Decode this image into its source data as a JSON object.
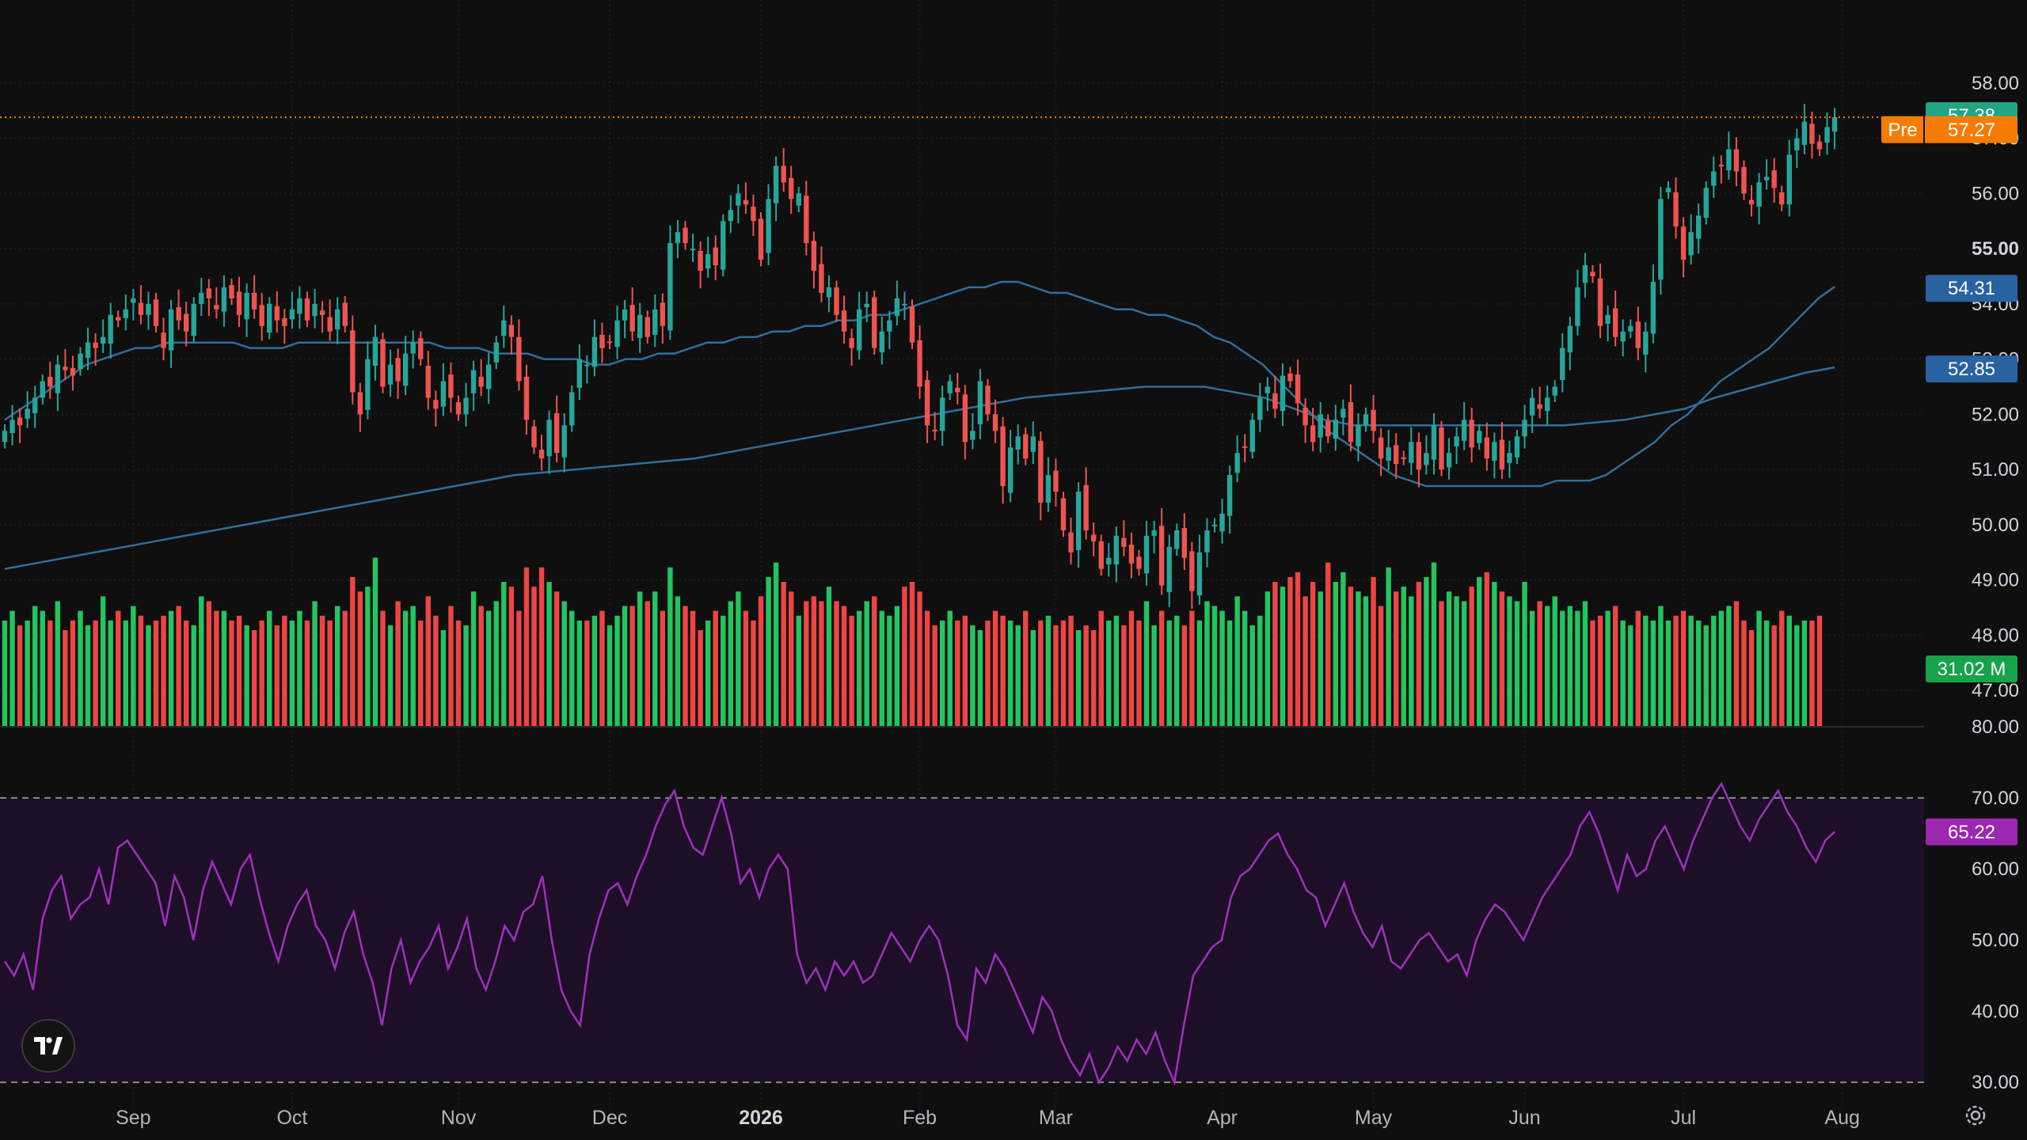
{
  "chart_data": {
    "type": "candlestick",
    "price_axis": {
      "ylim": [
        46.6,
        58.6
      ],
      "ticks": [
        "58.00",
        "57.00",
        "56.00",
        "55.00",
        "54.00",
        "53.00",
        "52.00",
        "51.00",
        "50.00",
        "49.00",
        "48.00",
        "47.00"
      ],
      "bold_ticks": [
        "55.00"
      ]
    },
    "rsi_axis": {
      "ylim": [
        25.0,
        80.0
      ],
      "ticks": [
        "80.00",
        "70.00",
        "60.00",
        "50.00",
        "40.00",
        "30.00"
      ],
      "band": [
        30,
        70
      ]
    },
    "x_labels": [
      {
        "label": "Sep",
        "i": 17,
        "bold": false
      },
      {
        "label": "Oct",
        "i": 38,
        "bold": false
      },
      {
        "label": "Nov",
        "i": 60,
        "bold": false
      },
      {
        "label": "Dec",
        "i": 80,
        "bold": false
      },
      {
        "label": "2026",
        "i": 100,
        "bold": true
      },
      {
        "label": "Feb",
        "i": 121,
        "bold": false
      },
      {
        "label": "Mar",
        "i": 139,
        "bold": false
      },
      {
        "label": "Apr",
        "i": 161,
        "bold": false
      },
      {
        "label": "May",
        "i": 181,
        "bold": false
      },
      {
        "label": "Jun",
        "i": 201,
        "bold": false
      },
      {
        "label": "Jul",
        "i": 222,
        "bold": false
      },
      {
        "label": "Aug",
        "i": 243,
        "bold": false
      }
    ],
    "closes": [
      51.7,
      51.9,
      51.8,
      52.1,
      52.3,
      52.6,
      52.5,
      52.9,
      52.8,
      52.7,
      53.1,
      53.3,
      53.2,
      53.4,
      53.8,
      53.7,
      53.9,
      54.1,
      53.8,
      54.0,
      53.6,
      53.2,
      53.9,
      53.7,
      53.5,
      54.0,
      54.2,
      54.1,
      53.9,
      54.3,
      54.1,
      53.8,
      54.2,
      53.9,
      53.6,
      54.0,
      53.7,
      53.6,
      53.9,
      54.1,
      53.7,
      54.0,
      53.8,
      53.5,
      53.9,
      53.6,
      52.4,
      52.0,
      53.0,
      53.4,
      52.5,
      52.9,
      52.6,
      53.1,
      53.3,
      53.0,
      52.3,
      52.1,
      52.6,
      52.3,
      52.0,
      52.3,
      52.8,
      52.5,
      52.9,
      53.3,
      53.7,
      53.4,
      52.6,
      51.9,
      51.4,
      51.2,
      51.9,
      51.3,
      51.8,
      52.4,
      53.0,
      52.9,
      53.4,
      53.2,
      53.3,
      53.7,
      53.9,
      53.5,
      53.8,
      53.4,
      53.9,
      53.6,
      55.1,
      55.3,
      55.1,
      55.0,
      54.6,
      54.9,
      54.7,
      55.5,
      55.7,
      56.0,
      55.8,
      55.5,
      54.8,
      55.9,
      56.5,
      56.2,
      55.9,
      56.0,
      55.1,
      54.6,
      54.2,
      54.3,
      53.8,
      53.5,
      53.2,
      53.9,
      54.0,
      53.2,
      53.5,
      53.7,
      54.1,
      54.0,
      53.3,
      52.5,
      51.8,
      51.7,
      52.3,
      52.6,
      52.4,
      51.5,
      51.7,
      52.6,
      52.0,
      51.7,
      50.7,
      51.4,
      51.6,
      51.2,
      51.6,
      50.4,
      50.9,
      50.6,
      49.9,
      49.5,
      50.6,
      49.9,
      49.7,
      49.2,
      49.4,
      49.8,
      49.6,
      49.3,
      49.2,
      49.8,
      49.9,
      48.9,
      49.6,
      49.9,
      49.4,
      48.8,
      49.5,
      49.9,
      50.0,
      50.2,
      50.9,
      51.3,
      51.4,
      51.9,
      52.3,
      52.5,
      52.1,
      52.7,
      52.6,
      52.2,
      51.8,
      51.5,
      52.0,
      51.6,
      51.9,
      52.1,
      51.5,
      51.8,
      52.0,
      51.7,
      51.2,
      51.4,
      51.1,
      51.2,
      51.5,
      51.0,
      51.3,
      51.8,
      51.0,
      51.3,
      51.6,
      51.9,
      51.4,
      51.7,
      51.2,
      51.5,
      51.0,
      51.3,
      51.6,
      51.9,
      52.3,
      52.1,
      52.3,
      52.5,
      53.2,
      53.6,
      54.3,
      54.7,
      54.5,
      53.6,
      53.8,
      53.4,
      53.5,
      53.6,
      53.2,
      53.5,
      54.4,
      55.9,
      56.1,
      55.4,
      54.8,
      55.3,
      55.6,
      56.1,
      56.4,
      56.5,
      56.8,
      56.4,
      56.0,
      55.8,
      56.2,
      56.3,
      56.1,
      55.8,
      56.7,
      57.0,
      57.3,
      56.9,
      56.8,
      57.2,
      57.38
    ],
    "ma_fast": [
      51.9,
      52.1,
      52.3,
      52.5,
      52.7,
      52.9,
      53.0,
      53.1,
      53.2,
      53.2,
      53.3,
      53.3,
      53.3,
      53.3,
      53.3,
      53.2,
      53.2,
      53.2,
      53.3,
      53.3,
      53.3,
      53.3,
      53.3,
      53.3,
      53.3,
      53.3,
      53.3,
      53.2,
      53.2,
      53.2,
      53.1,
      53.1,
      53.1,
      53.0,
      53.0,
      53.0,
      52.9,
      52.9,
      53.0,
      53.0,
      53.1,
      53.1,
      53.2,
      53.3,
      53.3,
      53.4,
      53.4,
      53.5,
      53.5,
      53.6,
      53.6,
      53.7,
      53.7,
      53.8,
      53.8,
      53.9,
      54.0,
      54.1,
      54.2,
      54.3,
      54.3,
      54.4,
      54.4,
      54.3,
      54.2,
      54.2,
      54.1,
      54.0,
      53.9,
      53.9,
      53.8,
      53.8,
      53.7,
      53.6,
      53.4,
      53.3,
      53.1,
      52.9,
      52.6,
      52.3,
      52.0,
      51.7,
      51.5,
      51.3,
      51.1,
      50.9,
      50.8,
      50.7,
      50.7,
      50.7,
      50.7,
      50.7,
      50.7,
      50.7,
      50.7,
      50.8,
      50.8,
      50.8,
      50.9,
      51.1,
      51.3,
      51.5,
      51.8,
      52.0,
      52.3,
      52.6,
      52.8,
      53.0,
      53.2,
      53.5,
      53.8,
      54.1,
      54.31
    ],
    "ma_slow": [
      49.2,
      49.3,
      49.4,
      49.5,
      49.6,
      49.7,
      49.8,
      49.9,
      50.0,
      50.1,
      50.2,
      50.3,
      50.4,
      50.5,
      50.6,
      50.7,
      50.8,
      50.9,
      50.95,
      51.0,
      51.05,
      51.1,
      51.15,
      51.2,
      51.3,
      51.4,
      51.5,
      51.6,
      51.7,
      51.8,
      51.9,
      52.0,
      52.1,
      52.2,
      52.3,
      52.35,
      52.4,
      52.45,
      52.5,
      52.5,
      52.5,
      52.4,
      52.3,
      52.1,
      51.9,
      51.8,
      51.8,
      51.8,
      51.8,
      51.8,
      51.8,
      51.8,
      51.8,
      51.85,
      51.9,
      52.0,
      52.1,
      52.3,
      52.45,
      52.6,
      52.75,
      52.85
    ],
    "volume_bars": [
      22,
      24,
      21,
      22,
      25,
      24,
      22,
      26,
      20,
      22,
      24,
      21,
      22,
      27,
      22,
      24,
      22,
      25,
      23,
      21,
      22,
      23,
      24,
      25,
      22,
      21,
      27,
      26,
      24,
      24,
      22,
      23,
      21,
      20,
      22,
      24,
      21,
      23,
      22,
      24,
      22,
      26,
      23,
      22,
      25,
      24,
      31,
      28,
      29,
      35,
      24,
      21,
      26,
      24,
      25,
      22,
      27,
      23,
      20,
      25,
      22,
      21,
      28,
      25,
      24,
      26,
      30,
      29,
      24,
      33,
      29,
      33,
      30,
      28,
      26,
      24,
      22,
      22,
      23,
      24,
      21,
      23,
      25,
      25,
      28,
      26,
      28,
      24,
      33,
      27,
      25,
      24,
      20,
      22,
      24,
      23,
      26,
      28,
      24,
      22,
      27,
      31,
      34,
      30,
      28,
      23,
      26,
      27,
      26,
      29,
      26,
      25,
      23,
      24,
      26,
      27,
      24,
      23,
      25,
      29,
      30,
      28,
      24,
      21,
      22,
      24,
      22,
      23,
      21,
      20,
      22,
      24,
      23,
      22,
      21,
      24,
      20,
      22,
      23,
      21,
      22,
      23,
      20,
      21,
      20,
      24,
      22,
      23,
      21,
      24,
      22,
      26,
      21,
      24,
      22,
      23,
      21,
      24,
      22,
      26,
      25,
      24,
      22,
      27,
      24,
      21,
      23,
      28,
      30,
      29,
      31,
      32,
      27,
      30,
      28,
      34,
      30,
      32,
      29,
      28,
      27,
      31,
      25,
      33,
      28,
      29,
      27,
      30,
      31,
      34,
      26,
      28,
      27,
      26,
      29,
      31,
      32,
      30,
      28,
      27,
      26,
      30,
      24,
      26,
      25,
      27,
      24,
      25,
      24,
      26,
      22,
      23,
      24,
      25,
      22,
      21,
      24,
      23,
      22,
      25,
      22,
      23,
      24,
      23,
      22,
      21,
      23,
      24,
      25,
      26,
      22,
      20,
      24,
      22,
      21,
      24,
      23,
      21,
      22,
      22,
      23
    ],
    "rsi": [
      47,
      45,
      48,
      43,
      53,
      57,
      59,
      53,
      55,
      56,
      60,
      55,
      63,
      64,
      62,
      60,
      58,
      52,
      59,
      56,
      50,
      57,
      61,
      58,
      55,
      60,
      62,
      56,
      51,
      47,
      52,
      55,
      57,
      52,
      50,
      46,
      51,
      54,
      48,
      44,
      38,
      46,
      50,
      44,
      47,
      49,
      52,
      46,
      49,
      53,
      46,
      43,
      47,
      52,
      50,
      54,
      55,
      59,
      50,
      43,
      40,
      38,
      48,
      53,
      57,
      58,
      55,
      59,
      62,
      66,
      69,
      71,
      66,
      63,
      62,
      66,
      70,
      65,
      58,
      60,
      56,
      60,
      62,
      60,
      48,
      44,
      46,
      43,
      47,
      45,
      47,
      44,
      45,
      48,
      51,
      49,
      47,
      50,
      52,
      50,
      45,
      38,
      36,
      46,
      44,
      48,
      46,
      43,
      40,
      37,
      42,
      40,
      36,
      33,
      31,
      34,
      30,
      32,
      35,
      33,
      36,
      34,
      37,
      33,
      30,
      38,
      45,
      47,
      49,
      50,
      56,
      59,
      60,
      62,
      64,
      65,
      62,
      60,
      57,
      56,
      52,
      55,
      58,
      54,
      51,
      49,
      52,
      47,
      46,
      48,
      50,
      51,
      49,
      47,
      48,
      45,
      50,
      53,
      55,
      54,
      52,
      50,
      53,
      56,
      58,
      60,
      62,
      66,
      68,
      65,
      61,
      57,
      62,
      59,
      60,
      64,
      66,
      63,
      60,
      64,
      67,
      70,
      72,
      69,
      66,
      64,
      67,
      69,
      71,
      68,
      66,
      63,
      61,
      64,
      65.22
    ],
    "last_price": "57.38",
    "pre_label": "Pre",
    "pre_price": "57.27",
    "ma_fast_value": "54.31",
    "ma_slow_value": "52.85",
    "volume_value": "31.02 M",
    "rsi_value": "65.22",
    "colors": {
      "up": "#26a69a",
      "down": "#ef5350",
      "vol_up": "#22c55e",
      "vol_down": "#ef4444",
      "ma": "#2f6f9b",
      "ma_fill": "#2962a0",
      "rsi_line": "#a02fbf",
      "rsi_band": "#1d0f27",
      "price_tag": "#22a584",
      "pre_tag": "#f57c00",
      "volume_tag": "#16a34a",
      "rsi_tag": "#9c27b0",
      "background": "#0f0f0f"
    }
  }
}
